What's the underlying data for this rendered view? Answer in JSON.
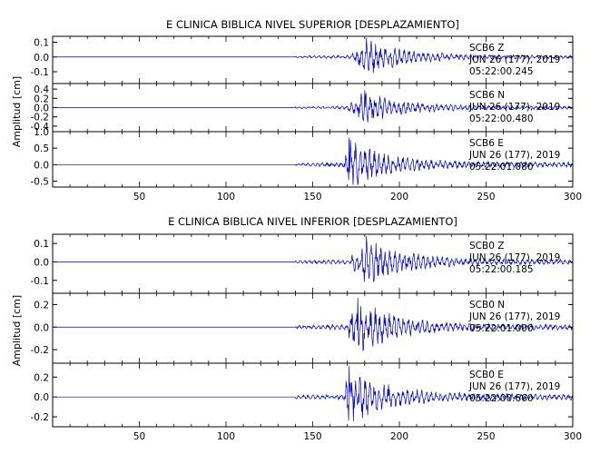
{
  "chart_data": [
    {
      "type": "line",
      "title": "E CLINICA BIBLICA NIVEL SUPERIOR [DESPLAZAMIENTO]",
      "ylabel": "Amplitud [cm]",
      "xlabel": "",
      "xlim": [
        0,
        300
      ],
      "x_ticks": [
        50,
        100,
        150,
        200,
        250,
        300
      ],
      "line_color": "#0000cc",
      "grid": false,
      "series": [
        {
          "name": "SCB6 Z",
          "annotation": [
            "SCB6   Z",
            "JUN 26 (177), 2019",
            "05:22:00.245"
          ],
          "ylim": [
            -0.18,
            0.14
          ],
          "y_ticks": [
            0.1,
            0.0,
            -0.1
          ],
          "y_tick_labels": [
            "0.1",
            "0.0",
            "-0.1"
          ],
          "noise_start": 140,
          "onset": 173,
          "peak_time": 181,
          "peak_amplitude": 0.13,
          "coda_end": 300
        },
        {
          "name": "SCB6 N",
          "annotation": [
            "SCB6   N",
            "JUN 26 (177), 2019",
            "05:22:00.480"
          ],
          "ylim": [
            -0.52,
            0.52
          ],
          "y_ticks": [
            0.4,
            0.2,
            0.0,
            -0.2,
            -0.4
          ],
          "y_tick_labels": [
            "0.4",
            "0.2",
            "0.0",
            "-0.2",
            "-0.4"
          ],
          "noise_start": 140,
          "onset": 170,
          "peak_time": 180,
          "peak_amplitude": 0.38,
          "coda_end": 300
        },
        {
          "name": "SCB6 E",
          "annotation": [
            "SCB6   E",
            "JUN 26 (177), 2019",
            "05:22:01.080"
          ],
          "ylim": [
            -0.68,
            1.0
          ],
          "y_ticks": [
            1.0,
            0.5,
            0.0,
            -0.5
          ],
          "y_tick_labels": [
            "1.0",
            "0.5",
            "0.0",
            "-0.5"
          ],
          "noise_start": 140,
          "onset": 168,
          "peak_time": 171,
          "peak_amplitude": 0.82,
          "coda_end": 300
        }
      ]
    },
    {
      "type": "line",
      "title": "E CLINICA BIBLICA NIVEL INFERIOR [DESPLAZAMIENTO]",
      "ylabel": "Amplitud [cm]",
      "xlabel": "",
      "xlim": [
        0,
        300
      ],
      "x_ticks": [
        50,
        100,
        150,
        200,
        250,
        300
      ],
      "line_color": "#0000cc",
      "grid": false,
      "series": [
        {
          "name": "SCB0 Z",
          "annotation": [
            "SCB0   Z",
            "JUN 26 (177), 2019",
            "05:22:00.185"
          ],
          "ylim": [
            -0.17,
            0.15
          ],
          "y_ticks": [
            0.1,
            0.0,
            -0.1
          ],
          "y_tick_labels": [
            "0.1",
            "0.0",
            "-0.1"
          ],
          "noise_start": 140,
          "onset": 172,
          "peak_time": 181,
          "peak_amplitude": 0.14,
          "coda_end": 300
        },
        {
          "name": "SCB0 N",
          "annotation": [
            "SCB0   N",
            "JUN 26 (177), 2019",
            "05:22:01.000"
          ],
          "ylim": [
            -0.32,
            0.3
          ],
          "y_ticks": [
            0.2,
            0.0,
            -0.2
          ],
          "y_tick_labels": [
            "0.2",
            "0.0",
            "-0.2"
          ],
          "noise_start": 140,
          "onset": 170,
          "peak_time": 176,
          "peak_amplitude": 0.26,
          "coda_end": 300
        },
        {
          "name": "SCB0 E",
          "annotation": [
            "SCB0   E",
            "JUN 26 (177), 2019",
            "05:22:00.660"
          ],
          "ylim": [
            -0.3,
            0.34
          ],
          "y_ticks": [
            0.2,
            0.0,
            -0.2
          ],
          "y_tick_labels": [
            "0.2",
            "0.0",
            "-0.2"
          ],
          "noise_start": 140,
          "onset": 168,
          "peak_time": 171,
          "peak_amplitude": 0.31,
          "coda_end": 300
        }
      ]
    }
  ]
}
